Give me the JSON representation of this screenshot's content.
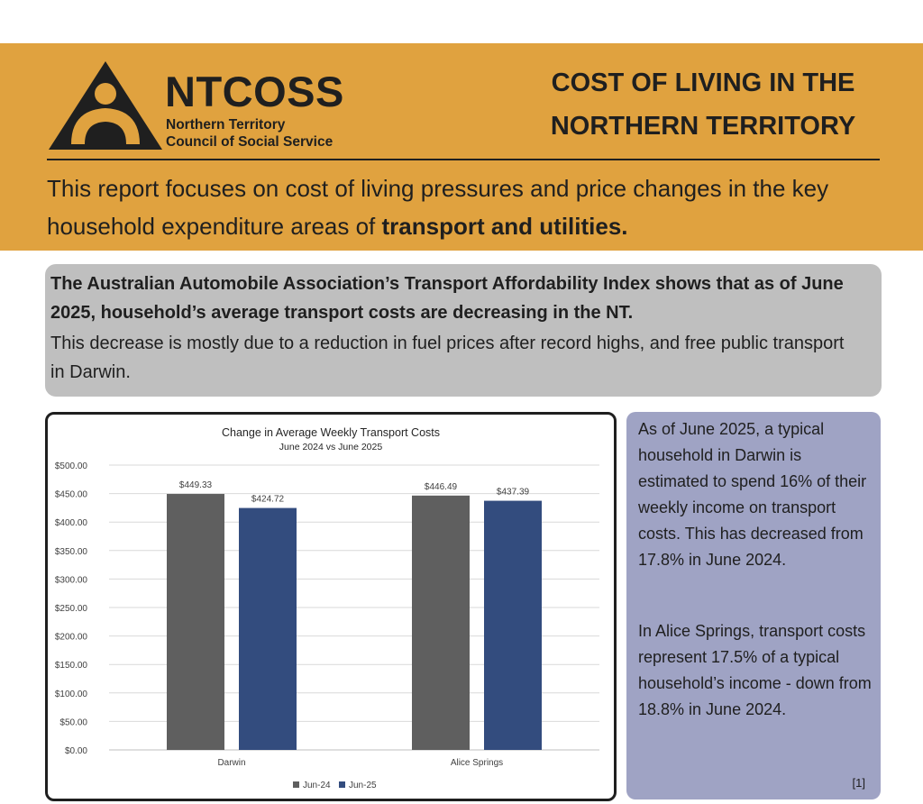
{
  "header": {
    "logo_name": "NTCOSS",
    "logo_sub_line1": "Northern Territory",
    "logo_sub_line2": "Council of Social Service",
    "title_line1": "COST OF LIVING IN THE",
    "title_line2": "NORTHERN TERRITORY",
    "intro_text": "This report focuses on cost of living pressures and price changes in the key household expenditure areas of ",
    "intro_bold": "transport and utilities."
  },
  "summary": {
    "lead": "The Australian Automobile Association’s Transport Affordability Index shows that as of June 2025, household’s average transport costs are decreasing in the NT.",
    "body": "This decrease is mostly due to a reduction in fuel prices after record highs, and free public transport in Darwin."
  },
  "sidebar": {
    "paragraph1": "As of June 2025, a typical household in Darwin is estimated to spend 16% of their weekly income on transport costs. This has decreased from 17.8% in June 2024.",
    "paragraph2": "In Alice Springs, transport costs represent 17.5% of a typical household’s income - down from 18.8% in June 2024.",
    "reference": "[1]"
  },
  "colors": {
    "banner": "#e0a23f",
    "summary_bg": "#bfbfbf",
    "sidebar_bg": "#9fa3c4",
    "jun24": "#5f5f5f",
    "jun25": "#334c7e"
  },
  "chart_data": {
    "type": "bar",
    "title": "Change in Average Weekly Transport Costs",
    "subtitle": "June 2024 vs June 2025",
    "categories": [
      "Darwin",
      "Alice Springs"
    ],
    "series": [
      {
        "name": "Jun-24",
        "values": [
          449.33,
          446.49
        ],
        "labels": [
          "$449.33",
          "$446.49"
        ],
        "color": "#5f5f5f"
      },
      {
        "name": "Jun-25",
        "values": [
          424.72,
          437.39
        ],
        "labels": [
          "$424.72",
          "$437.39"
        ],
        "color": "#334c7e"
      }
    ],
    "ylim": [
      0,
      500
    ],
    "yticks": [
      0,
      50,
      100,
      150,
      200,
      250,
      300,
      350,
      400,
      450,
      500
    ],
    "ytick_labels": [
      "$0.00",
      "$50.00",
      "$100.00",
      "$150.00",
      "$200.00",
      "$250.00",
      "$300.00",
      "$350.00",
      "$400.00",
      "$450.00",
      "$500.00"
    ],
    "grid": true,
    "legend": "bottom"
  }
}
